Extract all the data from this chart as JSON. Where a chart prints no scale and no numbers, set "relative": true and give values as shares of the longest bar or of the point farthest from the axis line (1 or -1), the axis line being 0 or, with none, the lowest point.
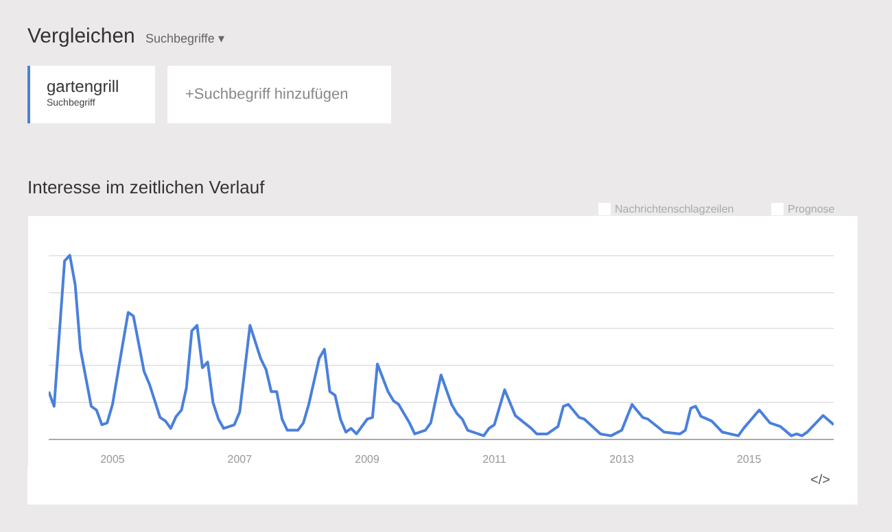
{
  "chart_data": {
    "type": "line",
    "title": "Interesse im zeitlichen Verlauf",
    "relative": true,
    "grid": "y",
    "legend": "top left",
    "tick_labels": "x",
    "annotations": [
      "Vergleichen",
      "Suchbegriffe ▾",
      "Suchbegriff",
      "+Suchbegriff hinzufügen",
      "Nachrichtenschlagzeilen",
      "Prognose",
      "</>"
    ],
    "xlim": [
      "2004-01",
      "2016-05"
    ],
    "xticks": [
      "2005",
      "2007",
      "2009",
      "2011",
      "2013",
      "2015"
    ],
    "x": [
      "2004-01",
      "2004-02",
      "2004-04",
      "2004-05",
      "2004-06",
      "2004-07",
      "2004-09",
      "2004-10",
      "2004-11",
      "2004-12",
      "2005-01",
      "2005-03",
      "2005-04",
      "2005-05",
      "2005-07",
      "2005-08",
      "2005-10",
      "2005-11",
      "2005-12",
      "2006-01",
      "2006-02",
      "2006-03",
      "2006-04",
      "2006-05",
      "2006-06",
      "2006-07",
      "2006-08",
      "2006-09",
      "2006-10",
      "2006-12",
      "2007-01",
      "2007-03",
      "2007-05",
      "2007-06",
      "2007-07",
      "2007-08",
      "2007-09",
      "2007-10",
      "2007-12",
      "2008-01",
      "2008-02",
      "2008-04",
      "2008-05",
      "2008-06",
      "2008-07",
      "2008-08",
      "2008-09",
      "2008-10",
      "2008-11",
      "2009-01",
      "2009-02",
      "2009-03",
      "2009-05",
      "2009-06",
      "2009-07",
      "2009-09",
      "2009-10",
      "2009-12",
      "2010-01",
      "2010-03",
      "2010-05",
      "2010-06",
      "2010-07",
      "2010-08",
      "2010-11",
      "2010-12",
      "2011-01",
      "2011-03",
      "2011-05",
      "2011-08",
      "2011-09",
      "2011-11",
      "2012-01",
      "2012-02",
      "2012-03",
      "2012-05",
      "2012-06",
      "2012-09",
      "2012-11",
      "2013-01",
      "2013-03",
      "2013-05",
      "2013-06",
      "2013-09",
      "2013-12",
      "2014-01",
      "2014-02",
      "2014-03",
      "2014-04",
      "2014-06",
      "2014-08",
      "2014-11",
      "2014-12",
      "2015-03",
      "2015-05",
      "2015-07",
      "2015-09",
      "2015-10",
      "2015-11",
      "2015-12",
      "2016-03",
      "2016-05"
    ],
    "series": [
      {
        "name": "gartengrill",
        "color": "#4a80dc",
        "values": [
          0.26,
          0.18,
          0.97,
          1.0,
          0.84,
          0.49,
          0.18,
          0.16,
          0.08,
          0.09,
          0.19,
          0.52,
          0.69,
          0.67,
          0.37,
          0.3,
          0.12,
          0.1,
          0.06,
          0.125,
          0.16,
          0.28,
          0.59,
          0.62,
          0.39,
          0.42,
          0.2,
          0.11,
          0.06,
          0.08,
          0.15,
          0.62,
          0.44,
          0.38,
          0.26,
          0.26,
          0.11,
          0.05,
          0.05,
          0.09,
          0.19,
          0.44,
          0.49,
          0.26,
          0.24,
          0.11,
          0.04,
          0.06,
          0.03,
          0.11,
          0.12,
          0.41,
          0.26,
          0.21,
          0.19,
          0.09,
          0.03,
          0.05,
          0.09,
          0.35,
          0.19,
          0.14,
          0.11,
          0.05,
          0.02,
          0.06,
          0.08,
          0.27,
          0.13,
          0.06,
          0.03,
          0.03,
          0.07,
          0.18,
          0.19,
          0.12,
          0.11,
          0.03,
          0.02,
          0.05,
          0.19,
          0.12,
          0.11,
          0.04,
          0.03,
          0.05,
          0.17,
          0.18,
          0.125,
          0.1,
          0.04,
          0.02,
          0.06,
          0.16,
          0.09,
          0.07,
          0.02,
          0.03,
          0.02,
          0.04,
          0.13,
          0.08
        ]
      }
    ]
  }
}
